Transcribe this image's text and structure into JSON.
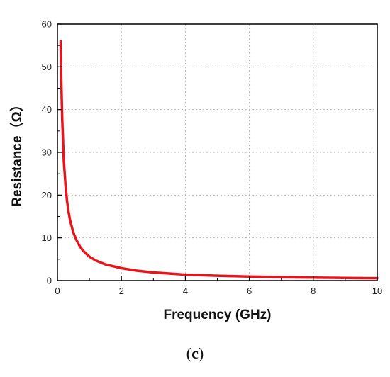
{
  "chart_data": {
    "type": "line",
    "xlabel": "Frequency (GHz)",
    "ylabel": "Resistance（Ω）",
    "xlim": [
      0,
      10
    ],
    "ylim": [
      0,
      60
    ],
    "x_ticks": [
      0,
      2,
      4,
      6,
      8,
      10
    ],
    "y_ticks": [
      0,
      10,
      20,
      30,
      40,
      50,
      60
    ],
    "grid": true,
    "legend": "none",
    "series": [
      {
        "color": "#e8141c",
        "x": [
          0.1,
          0.12,
          0.15,
          0.2,
          0.25,
          0.3,
          0.35,
          0.4,
          0.5,
          0.6,
          0.7,
          0.8,
          1.0,
          1.2,
          1.5,
          2.0,
          2.5,
          3.0,
          4.0,
          5.0,
          6.0,
          7.0,
          8.0,
          9.0,
          10.0
        ],
        "y": [
          56,
          47,
          37.5,
          28,
          22.5,
          18.7,
          16.0,
          14.0,
          11.2,
          9.4,
          8.0,
          7.0,
          5.6,
          4.7,
          3.8,
          2.9,
          2.3,
          1.9,
          1.4,
          1.15,
          0.95,
          0.8,
          0.7,
          0.62,
          0.56
        ]
      }
    ]
  },
  "caption": {
    "open": "(",
    "letter": "c",
    "close": ")"
  }
}
